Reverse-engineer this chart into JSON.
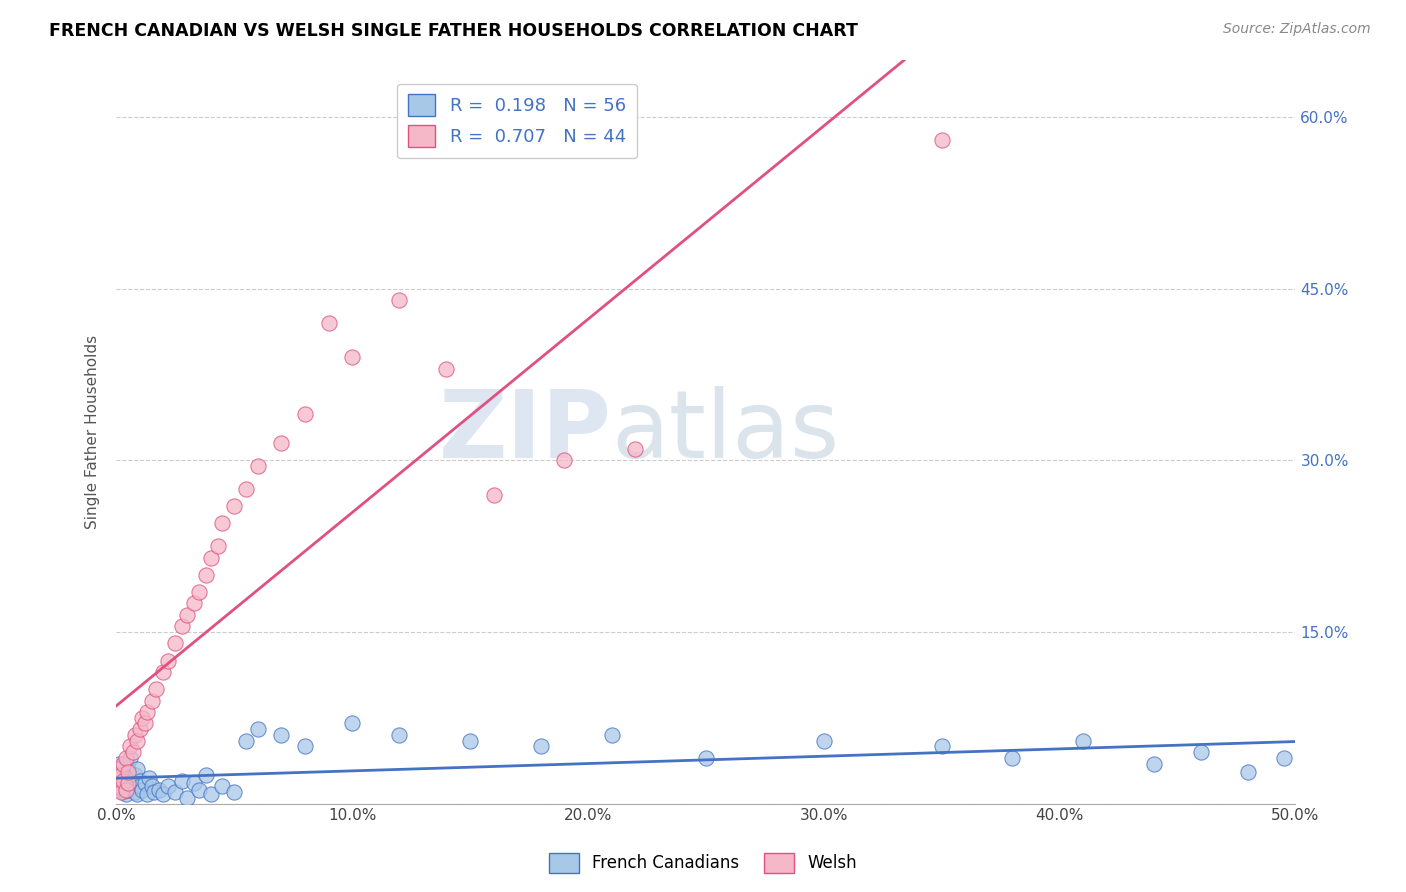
{
  "title": "FRENCH CANADIAN VS WELSH SINGLE FATHER HOUSEHOLDS CORRELATION CHART",
  "source": "Source: ZipAtlas.com",
  "ylabel": "Single Father Households",
  "xlim": [
    0.0,
    0.5
  ],
  "ylim": [
    0.0,
    0.65
  ],
  "xticks": [
    0.0,
    0.1,
    0.2,
    0.3,
    0.4,
    0.5
  ],
  "xticklabels": [
    "0.0%",
    "10.0%",
    "20.0%",
    "30.0%",
    "40.0%",
    "50.0%"
  ],
  "yticks": [
    0.0,
    0.15,
    0.3,
    0.45,
    0.6
  ],
  "yticklabels": [
    "",
    "15.0%",
    "30.0%",
    "45.0%",
    "60.0%"
  ],
  "blue_color": "#a8c8e8",
  "pink_color": "#f4b8c8",
  "blue_line_color": "#4472c4",
  "pink_line_color": "#e05080",
  "legend_R1": "0.198",
  "legend_N1": "56",
  "legend_R2": "0.707",
  "legend_N2": "44",
  "legend_label1": "French Canadians",
  "legend_label2": "Welsh",
  "watermark_zip": "ZIP",
  "watermark_atlas": "atlas",
  "french_canadian_x": [
    0.001,
    0.001,
    0.002,
    0.002,
    0.003,
    0.003,
    0.004,
    0.004,
    0.005,
    0.005,
    0.006,
    0.006,
    0.007,
    0.007,
    0.008,
    0.008,
    0.009,
    0.009,
    0.01,
    0.01,
    0.011,
    0.012,
    0.013,
    0.014,
    0.015,
    0.016,
    0.018,
    0.02,
    0.022,
    0.025,
    0.028,
    0.03,
    0.033,
    0.035,
    0.038,
    0.04,
    0.045,
    0.05,
    0.055,
    0.06,
    0.07,
    0.08,
    0.1,
    0.12,
    0.15,
    0.18,
    0.21,
    0.25,
    0.3,
    0.35,
    0.38,
    0.41,
    0.44,
    0.46,
    0.48,
    0.495
  ],
  "french_canadian_y": [
    0.02,
    0.035,
    0.015,
    0.028,
    0.01,
    0.032,
    0.008,
    0.025,
    0.03,
    0.012,
    0.018,
    0.04,
    0.022,
    0.015,
    0.025,
    0.01,
    0.03,
    0.008,
    0.02,
    0.015,
    0.012,
    0.018,
    0.008,
    0.022,
    0.015,
    0.01,
    0.012,
    0.008,
    0.015,
    0.01,
    0.02,
    0.005,
    0.018,
    0.012,
    0.025,
    0.008,
    0.015,
    0.01,
    0.055,
    0.065,
    0.06,
    0.05,
    0.07,
    0.06,
    0.055,
    0.05,
    0.06,
    0.04,
    0.055,
    0.05,
    0.04,
    0.055,
    0.035,
    0.045,
    0.028,
    0.04
  ],
  "welsh_x": [
    0.001,
    0.001,
    0.002,
    0.002,
    0.003,
    0.003,
    0.004,
    0.004,
    0.005,
    0.005,
    0.006,
    0.007,
    0.008,
    0.009,
    0.01,
    0.011,
    0.012,
    0.013,
    0.015,
    0.017,
    0.02,
    0.022,
    0.025,
    0.028,
    0.03,
    0.033,
    0.035,
    0.038,
    0.04,
    0.043,
    0.045,
    0.05,
    0.055,
    0.06,
    0.07,
    0.08,
    0.09,
    0.1,
    0.12,
    0.14,
    0.16,
    0.19,
    0.22,
    0.35
  ],
  "welsh_y": [
    0.015,
    0.03,
    0.01,
    0.025,
    0.02,
    0.035,
    0.012,
    0.04,
    0.018,
    0.028,
    0.05,
    0.045,
    0.06,
    0.055,
    0.065,
    0.075,
    0.07,
    0.08,
    0.09,
    0.1,
    0.115,
    0.125,
    0.14,
    0.155,
    0.165,
    0.175,
    0.185,
    0.2,
    0.215,
    0.225,
    0.245,
    0.26,
    0.275,
    0.295,
    0.315,
    0.34,
    0.42,
    0.39,
    0.44,
    0.38,
    0.27,
    0.3,
    0.31,
    0.58
  ]
}
